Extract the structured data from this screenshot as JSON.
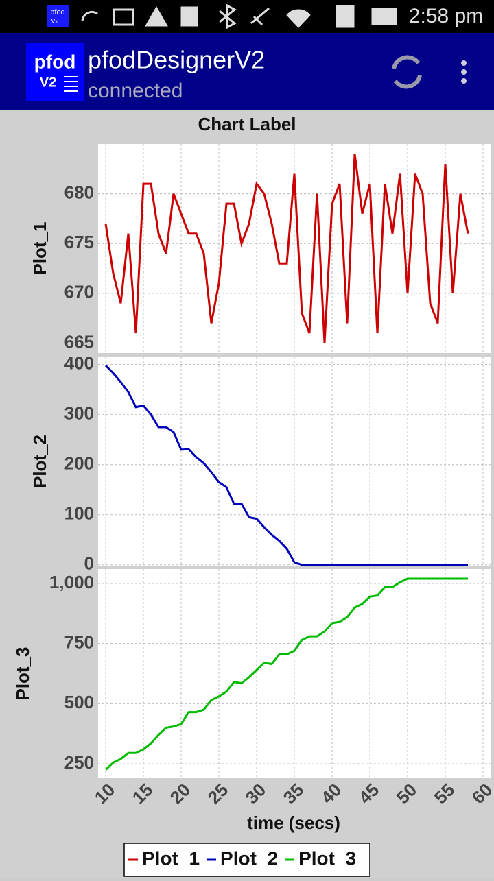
{
  "status_bar": {
    "app_icon": [
      "pfod",
      "V2"
    ],
    "time": "2:58 pm"
  },
  "app_bar": {
    "logo": [
      "pfod",
      "V2"
    ],
    "title": "pfodDesignerV2",
    "subtitle": "connected"
  },
  "chart_data": [
    {
      "type": "line",
      "title": "Chart Label",
      "x": [
        10,
        11,
        12,
        13,
        14,
        15,
        16,
        17,
        18,
        19,
        20,
        21,
        22,
        23,
        24,
        25,
        26,
        27,
        28,
        29,
        30,
        31,
        32,
        33,
        34,
        35,
        36,
        37,
        38,
        39,
        40,
        41,
        42,
        43,
        44,
        45,
        46,
        47,
        48,
        49,
        50,
        51,
        52,
        53,
        54,
        55,
        56,
        57,
        58
      ],
      "xlim": [
        9,
        61
      ],
      "xticks": [
        10,
        15,
        20,
        25,
        30,
        35,
        40,
        45,
        50,
        55,
        60
      ],
      "series": [
        {
          "name": "Plot_1",
          "color": "#cc0000",
          "values": [
            677,
            672,
            669,
            676,
            666,
            681,
            681,
            676,
            674,
            680,
            678,
            676,
            676,
            674,
            667,
            671,
            679,
            679,
            675,
            677,
            681,
            680,
            677,
            673,
            673,
            682,
            668,
            666,
            680,
            665,
            679,
            681,
            667,
            684,
            678,
            681,
            666,
            681,
            676,
            682,
            670,
            682,
            680,
            669,
            667,
            683,
            670,
            680,
            676
          ]
        }
      ],
      "ylim": [
        664,
        685
      ],
      "yticks": [
        665,
        670,
        675,
        680
      ],
      "grid": true
    },
    {
      "type": "line",
      "x": [
        10,
        11,
        12,
        13,
        14,
        15,
        16,
        17,
        18,
        19,
        20,
        21,
        22,
        23,
        24,
        25,
        26,
        27,
        28,
        29,
        30,
        31,
        32,
        33,
        34,
        35,
        36,
        37,
        38,
        39,
        40,
        41,
        42,
        43,
        44,
        45,
        46,
        47,
        48,
        49,
        50,
        51,
        52,
        53,
        54,
        55,
        56,
        57,
        58
      ],
      "xlim": [
        9,
        61
      ],
      "xticks": [
        10,
        15,
        20,
        25,
        30,
        35,
        40,
        45,
        50,
        55,
        60
      ],
      "series": [
        {
          "name": "Plot_2",
          "color": "#0000bb",
          "values": [
            398,
            383,
            365,
            345,
            315,
            318,
            300,
            275,
            275,
            265,
            230,
            231,
            215,
            203,
            185,
            165,
            155,
            122,
            122,
            95,
            92,
            75,
            60,
            48,
            32,
            5,
            0,
            0,
            0,
            0,
            0,
            0,
            0,
            0,
            0,
            0,
            0,
            0,
            0,
            0,
            0,
            0,
            0,
            0,
            0,
            0,
            0,
            0,
            0
          ]
        }
      ],
      "ylim": [
        -3,
        416
      ],
      "yticks": [
        0,
        100,
        200,
        300,
        400
      ],
      "grid": true
    },
    {
      "type": "line",
      "xlabel": "time (secs)",
      "x": [
        10,
        11,
        12,
        13,
        14,
        15,
        16,
        17,
        18,
        19,
        20,
        21,
        22,
        23,
        24,
        25,
        26,
        27,
        28,
        29,
        30,
        31,
        32,
        33,
        34,
        35,
        36,
        37,
        38,
        39,
        40,
        41,
        42,
        43,
        44,
        45,
        46,
        47,
        48,
        49,
        50,
        51,
        52,
        53,
        54,
        55,
        56,
        57,
        58
      ],
      "xlim": [
        9,
        61
      ],
      "xticks": [
        10,
        15,
        20,
        25,
        30,
        35,
        40,
        45,
        50,
        55,
        60
      ],
      "series": [
        {
          "name": "Plot_3",
          "color": "#00bb00",
          "values": [
            225,
            255,
            270,
            295,
            295,
            310,
            335,
            370,
            400,
            405,
            415,
            465,
            465,
            475,
            515,
            530,
            550,
            590,
            585,
            610,
            640,
            670,
            665,
            705,
            705,
            720,
            765,
            780,
            780,
            800,
            835,
            840,
            860,
            900,
            915,
            945,
            950,
            985,
            985,
            1005,
            1020,
            1020,
            1020,
            1020,
            1020,
            1020,
            1020,
            1020,
            1020
          ]
        }
      ],
      "ylim": [
        190,
        1060
      ],
      "yticks": [
        250,
        500,
        750,
        {
          "value": 1000,
          "label": "1,000"
        }
      ],
      "grid": true
    }
  ]
}
